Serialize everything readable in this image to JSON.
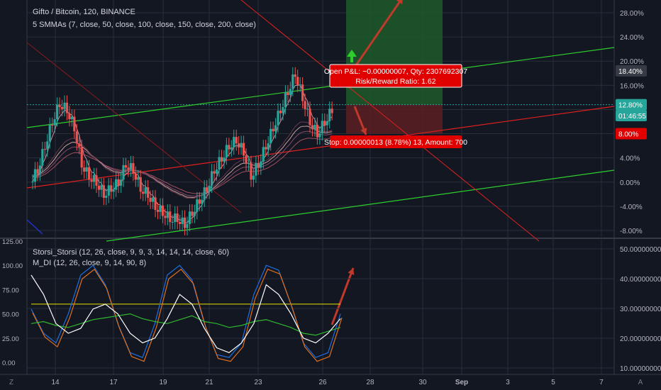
{
  "header": {
    "symbol_line": "Gifto / Bitcoin, 120, BINANCE",
    "ma_line": "5 SMMAs (7, close, 50, close, 100, close, 150, close, 200, close)"
  },
  "main_axis": {
    "ticks": [
      "28.00%",
      "24.00%",
      "20.00%",
      "16.00%",
      "12.00%",
      "8.00%",
      "4.00%",
      "0.00%",
      "-4.00%",
      "-8.00%"
    ],
    "tick_values": [
      28,
      24,
      20,
      16,
      12,
      8,
      4,
      0,
      -4,
      -8
    ],
    "tags": [
      {
        "text": "18.40%",
        "value": 18.4,
        "color": "#363a45"
      },
      {
        "text": "12.80%",
        "value": 12.8,
        "color": "#26a69a"
      },
      {
        "text": "01:46:55",
        "value": 11.0,
        "color": "#26a69a"
      },
      {
        "text": "8.00%",
        "value": 8.0,
        "color": "#e00000"
      }
    ]
  },
  "trade_box": {
    "pnl_line1": "Open P&L: −0.00000007, Qty: 2307692307",
    "pnl_line2": "Risk/Reward Ratio: 1.62",
    "stop_label": "Stop: 0.00000013 (8.78%) 13, Amount: 700",
    "target_pct": 28.0,
    "entry_pct": 12.8,
    "stop_pct": 8.0
  },
  "indicator": {
    "line1": "Storsi_Storsi (12, 26, close, 9, 9, 3, 14, 14, 14, close, 60)",
    "line2": "M_DI (12, 26, close, 9, 14, 90, 8)",
    "left_ticks": [
      "125.00",
      "100.00",
      "75.00",
      "50.00",
      "25.00",
      "0.00"
    ],
    "left_values": [
      125,
      100,
      75,
      50,
      25,
      0
    ],
    "right_ticks": [
      "50.00000000",
      "40.00000000",
      "30.00000000",
      "20.00000000",
      "10.00000000"
    ],
    "right_values": [
      50,
      40,
      30,
      20,
      10
    ],
    "threshold": 60
  },
  "x_axis": {
    "labels": [
      "14",
      "17",
      "19",
      "21",
      "23",
      "26",
      "28",
      "30",
      "Sep",
      "3",
      "5",
      "7"
    ],
    "bold": [
      "Sep"
    ]
  },
  "corner_left": "Z",
  "corner_right": "A",
  "colors": {
    "background": "#131722",
    "grid": "#2a2e39",
    "up": "#26a69a",
    "down": "#ef5350",
    "green_line": "#2ece2e",
    "red_line": "#e0201f",
    "target_zone": "#1f5a2a",
    "stop_zone": "#5a1e22",
    "arrow": "#c0392b",
    "tag_red": "#e00000",
    "tag_teal": "#26a69a",
    "yellow": "#e6e600"
  },
  "chart_data": [
    {
      "type": "candlestick",
      "title": "Gifto / Bitcoin, 120, BINANCE",
      "ylabel": "",
      "ylim": [
        -9,
        30
      ],
      "x_labels": [
        "14",
        "17",
        "19",
        "21",
        "23",
        "26"
      ],
      "close_path": [
        0,
        2,
        6,
        10,
        13,
        12,
        9,
        3,
        1,
        0,
        -2,
        -1,
        0,
        3,
        2,
        -1,
        -2,
        -4,
        -5,
        -6,
        -6,
        -7,
        -5,
        -3,
        -1,
        2,
        4,
        6,
        7,
        5,
        1,
        3,
        6,
        9,
        12,
        15,
        18,
        14,
        10,
        8,
        10,
        12
      ],
      "ma_levels": [
        1.5,
        2.0,
        2.5,
        3.0,
        3.5
      ],
      "note_levels": {
        "entry": 12.8,
        "stop": 8.0,
        "target": 28.0
      }
    },
    {
      "type": "line",
      "title": "Storsi_Storsi / M_DI",
      "ylim": [
        -5,
        125
      ],
      "series": [
        {
          "name": "",
          "values": [
            55,
            30,
            20,
            50,
            90,
            100,
            80,
            40,
            10,
            5,
            40,
            90,
            100,
            85,
            40,
            8,
            5,
            20,
            70,
            100,
            95,
            60,
            20,
            5,
            10,
            50
          ]
        },
        {
          "name": "",
          "values": [
            40,
            42,
            38,
            36,
            40,
            44,
            46,
            48,
            50,
            45,
            42,
            40,
            44,
            48,
            42,
            40,
            36,
            38,
            42,
            44,
            40,
            36,
            30,
            28,
            32,
            36
          ]
        },
        {
          "name": "",
          "values": [
            90,
            70,
            40,
            30,
            35,
            55,
            60,
            50,
            30,
            20,
            25,
            45,
            70,
            60,
            35,
            15,
            10,
            20,
            40,
            80,
            70,
            50,
            25,
            20,
            30,
            45
          ]
        }
      ],
      "threshold": 60
    }
  ]
}
